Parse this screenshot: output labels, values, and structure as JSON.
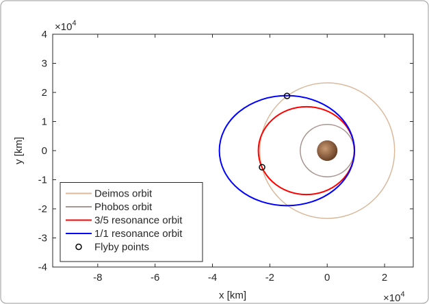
{
  "chart_data": {
    "type": "ellipse",
    "xlabel": "x [km]",
    "ylabel": "y [km]",
    "x_multiplier": {
      "base": "×10",
      "exponent": "4"
    },
    "y_multiplier": {
      "base": "×10",
      "exponent": "4"
    },
    "xlim": [
      -9.57,
      3
    ],
    "ylim": [
      -4,
      4
    ],
    "xticks": [
      -8,
      -6,
      -4,
      -2,
      0,
      2
    ],
    "yticks": [
      -4,
      -3,
      -2,
      -1,
      0,
      1,
      2,
      3,
      4
    ],
    "legend": "lower left",
    "series": [
      {
        "name": "Deimos orbit",
        "color": "#d9b99b",
        "center": [
          0,
          0
        ],
        "semi_axes": [
          2.35,
          2.33
        ]
      },
      {
        "name": "Phobos orbit",
        "color": "#a89490",
        "center": [
          0,
          0
        ],
        "semi_axes": [
          0.94,
          0.9
        ]
      },
      {
        "name": "3/5 resonance orbit",
        "color": "#ff0000",
        "center": [
          -0.725,
          0
        ],
        "semi_axes": [
          1.675,
          1.51
        ]
      },
      {
        "name": "1/1 resonance orbit",
        "color": "#0000ff",
        "center": [
          -1.405,
          0
        ],
        "semi_axes": [
          2.355,
          1.89
        ]
      }
    ],
    "points": {
      "name": "Flyby points",
      "color": "#000000",
      "x": [
        -1.4,
        -2.27
      ],
      "y": [
        1.88,
        -0.57
      ]
    }
  }
}
